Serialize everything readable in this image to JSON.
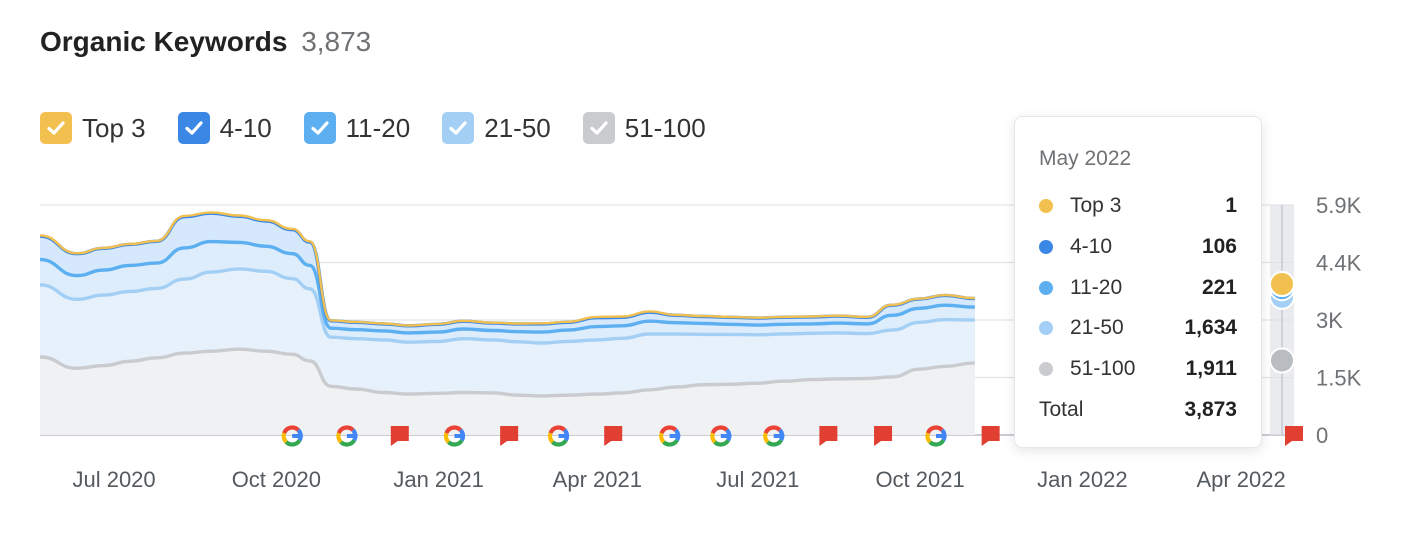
{
  "header": {
    "title": "Organic Keywords",
    "count": "3,873"
  },
  "legend": [
    {
      "label": "Top 3",
      "color": "#f2c04e",
      "checked": true
    },
    {
      "label": "4-10",
      "color": "#3b87e6",
      "checked": true
    },
    {
      "label": "11-20",
      "color": "#5caff0",
      "checked": true
    },
    {
      "label": "21-50",
      "color": "#a4cff5",
      "checked": true
    },
    {
      "label": "51-100",
      "color": "#c9cbcf",
      "checked": true
    }
  ],
  "tooltip": {
    "date": "May 2022",
    "rows": [
      {
        "label": "Top 3",
        "value": "1",
        "color": "#f2c04e"
      },
      {
        "label": "4-10",
        "value": "106",
        "color": "#3b87e6"
      },
      {
        "label": "11-20",
        "value": "221",
        "color": "#5caff0"
      },
      {
        "label": "21-50",
        "value": "1,634",
        "color": "#a4cff5"
      },
      {
        "label": "51-100",
        "value": "1,911",
        "color": "#c9cbcf"
      }
    ],
    "total_label": "Total",
    "total_value": "3,873"
  },
  "chart_data": {
    "type": "area",
    "stacked": true,
    "x": [
      "2020-05-20",
      "2020-06-10",
      "2020-06-25",
      "2020-07-10",
      "2020-07-25",
      "2020-08-10",
      "2020-08-25",
      "2020-09-10",
      "2020-09-25",
      "2020-10-10",
      "2020-10-20",
      "2020-11-01",
      "2020-11-15",
      "2020-12-01",
      "2020-12-15",
      "2021-01-01",
      "2021-01-15",
      "2021-02-01",
      "2021-02-15",
      "2021-03-01",
      "2021-03-15",
      "2021-04-01",
      "2021-04-15",
      "2021-05-01",
      "2021-05-15",
      "2021-06-01",
      "2021-06-15",
      "2021-07-01",
      "2021-07-15",
      "2021-08-01",
      "2021-08-15",
      "2021-09-01",
      "2021-09-15",
      "2021-10-01",
      "2021-10-15",
      "2021-11-01"
    ],
    "series": [
      {
        "name": "51-100",
        "color": "#c9cbcf",
        "values": [
          2000,
          1710,
          1780,
          1890,
          1980,
          2100,
          2150,
          2200,
          2150,
          2070,
          1900,
          1250,
          1180,
          1090,
          1050,
          1070,
          1090,
          1080,
          1020,
          1000,
          1020,
          1050,
          1080,
          1160,
          1230,
          1290,
          1300,
          1330,
          1380,
          1420,
          1440,
          1450,
          1490,
          1690,
          1760,
          1850
        ]
      },
      {
        "name": "21-50",
        "color": "#a4cff5",
        "values": [
          1850,
          1770,
          1810,
          1790,
          1780,
          1900,
          2030,
          2060,
          2050,
          1940,
          1850,
          1260,
          1290,
          1350,
          1330,
          1330,
          1380,
          1360,
          1370,
          1360,
          1380,
          1390,
          1400,
          1430,
          1360,
          1290,
          1280,
          1240,
          1210,
          1190,
          1180,
          1150,
          1200,
          1200,
          1200,
          1100
        ]
      },
      {
        "name": "11-20",
        "color": "#5caff0",
        "values": [
          650,
          610,
          640,
          670,
          650,
          800,
          780,
          680,
          640,
          640,
          600,
          230,
          230,
          230,
          240,
          240,
          250,
          240,
          260,
          280,
          290,
          340,
          320,
          330,
          290,
          280,
          260,
          250,
          250,
          240,
          250,
          250,
          380,
          360,
          370,
          330
        ]
      },
      {
        "name": "4-10",
        "color": "#3b87e6",
        "values": [
          600,
          560,
          560,
          540,
          560,
          800,
          730,
          670,
          650,
          620,
          600,
          190,
          190,
          180,
          180,
          200,
          200,
          190,
          200,
          210,
          200,
          230,
          220,
          230,
          190,
          180,
          180,
          180,
          180,
          180,
          180,
          170,
          260,
          240,
          250,
          220
        ]
      },
      {
        "name": "Top 3",
        "color": "#f2c04e",
        "values": [
          20,
          10,
          10,
          10,
          10,
          20,
          20,
          20,
          20,
          20,
          20,
          10,
          10,
          10,
          10,
          10,
          10,
          10,
          10,
          15,
          15,
          20,
          20,
          20,
          10,
          10,
          10,
          10,
          10,
          10,
          10,
          10,
          10,
          10,
          10,
          10
        ]
      }
    ],
    "x_ticks": [
      "Jul 2020",
      "Oct 2020",
      "Jan 2021",
      "Apr 2021",
      "Jul 2021",
      "Oct 2021",
      "Jan 2022",
      "Apr 2022"
    ],
    "y_ticks": [
      "0",
      "1.5K",
      "3K",
      "4.4K",
      "5.9K"
    ],
    "ylim": [
      0,
      5900
    ],
    "grid": true,
    "events": [
      {
        "type": "google",
        "date": "2020-10-10"
      },
      {
        "type": "google",
        "date": "2020-11-10"
      },
      {
        "type": "flag",
        "date": "2020-12-10"
      },
      {
        "type": "google",
        "date": "2021-01-10"
      },
      {
        "type": "flag",
        "date": "2021-02-10"
      },
      {
        "type": "google",
        "date": "2021-03-10"
      },
      {
        "type": "flag",
        "date": "2021-04-10"
      },
      {
        "type": "google",
        "date": "2021-05-12"
      },
      {
        "type": "google",
        "date": "2021-06-10"
      },
      {
        "type": "google",
        "date": "2021-07-10"
      },
      {
        "type": "flag",
        "date": "2021-08-10"
      },
      {
        "type": "flag",
        "date": "2021-09-10"
      },
      {
        "type": "google",
        "date": "2021-10-10"
      },
      {
        "type": "flag",
        "date": "2021-11-10"
      },
      {
        "type": "flag",
        "date": "2022-05-01"
      }
    ]
  }
}
